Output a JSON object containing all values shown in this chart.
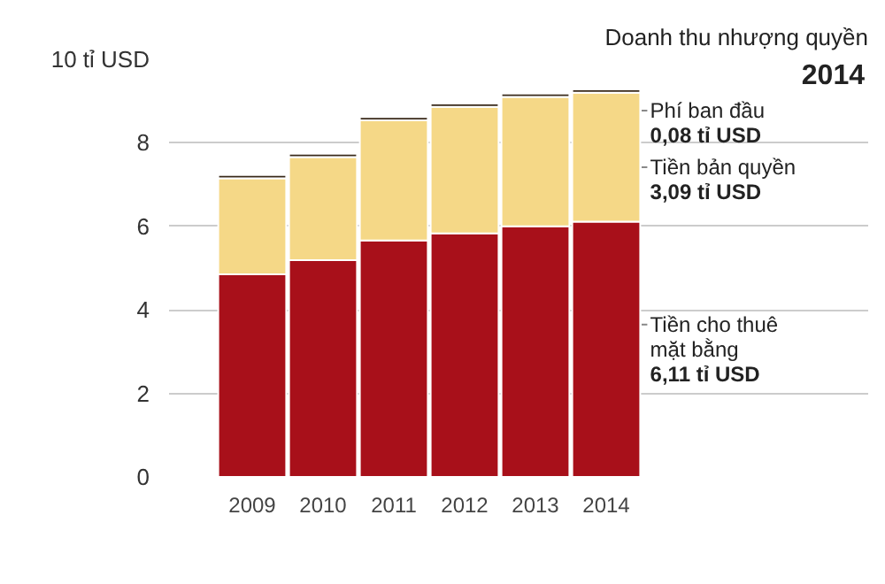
{
  "chart_data": {
    "type": "bar",
    "stacked": true,
    "title": "Doanh thu nhượng quyền",
    "subtitle": "2014",
    "categories": [
      "2009",
      "2010",
      "2011",
      "2012",
      "2013",
      "2014"
    ],
    "series": [
      {
        "name": "Tiền cho thuê mặt bằng",
        "color": "#a8101a",
        "values": [
          4.85,
          5.19,
          5.66,
          5.83,
          6.0,
          6.11
        ]
      },
      {
        "name": "Tiền bản quyền",
        "color": "#f5d887",
        "values": [
          2.3,
          2.47,
          2.88,
          3.03,
          3.1,
          3.09
        ]
      },
      {
        "name": "Phí ban đầu",
        "color": "#3a2a1a",
        "values": [
          0.08,
          0.08,
          0.08,
          0.08,
          0.08,
          0.08
        ]
      }
    ],
    "ylim": [
      0,
      10
    ],
    "yticks": [
      0,
      2,
      4,
      6,
      8,
      {
        "value": 10,
        "label": "10 tỉ USD"
      }
    ],
    "annotations": [
      "6,11 tỉ USD",
      "3,09 tỉ USD",
      "0,08 tỉ USD"
    ],
    "grid": "y"
  }
}
